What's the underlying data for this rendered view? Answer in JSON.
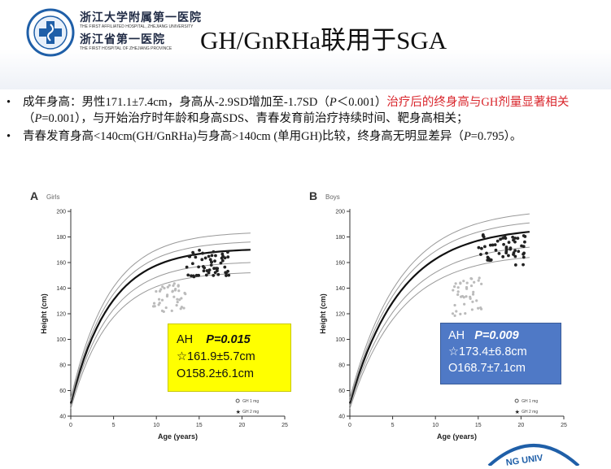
{
  "header": {
    "school_cn_1": "浙江大学附属第一医院",
    "school_en_1": "THE FIRST AFFILIATED HOSPITAL, ZHEJIANG UNIVERSITY",
    "school_cn_2": "浙江省第一医院",
    "school_en_2": "THE FIRST HOSPITAL OF ZHEJIANG PROVINCE",
    "title": "GH/GnRHa联用于SGA"
  },
  "bullets": [
    {
      "part1": "成年身高：男性171.1±7.4cm，身高从-2.9SD增加至-1.7SD（",
      "p_italic": "P",
      "part2": "＜0.001）",
      "red_text": "治疗后的终身高与GH剂量显著相关",
      "part3": "（",
      "p_italic2": "P",
      "part4": "=0.001），与开始治疗时年龄和身高SDS、青春发育前治疗持续时间、靶身高相关；"
    },
    {
      "part1": "青春发育身高<140cm(GH/GnRHa)与身高>140cm (单用GH)比较，终身高无明显差异（",
      "p_italic": "P",
      "part2": "=0.795）。"
    }
  ],
  "bullet_symbol": "•",
  "chart_data": [
    {
      "type": "scatter",
      "panel": "A",
      "title": "Girls",
      "xlabel": "Age (years)",
      "ylabel": "Height (cm)",
      "xlim": [
        0,
        25
      ],
      "ylim": [
        40,
        200
      ],
      "x_ticks": [
        "0",
        "5",
        "10",
        "15",
        "20",
        "25"
      ],
      "y_ticks": [
        "40",
        "60",
        "80",
        "100",
        "120",
        "140",
        "160",
        "180",
        "200"
      ],
      "legend": [
        "GH 1 mg",
        "GH 2 mg"
      ],
      "annotation": {
        "label": "AH",
        "p": "P=0.015",
        "line1": "☆161.9±5.7cm",
        "line2": "O158.2±6.1cm"
      }
    },
    {
      "type": "scatter",
      "panel": "B",
      "title": "Boys",
      "xlabel": "Age (years)",
      "ylabel": "Height (cm)",
      "xlim": [
        0,
        25
      ],
      "ylim": [
        40,
        200
      ],
      "x_ticks": [
        "0",
        "5",
        "10",
        "15",
        "20",
        "25"
      ],
      "y_ticks": [
        "40",
        "60",
        "80",
        "100",
        "120",
        "140",
        "160",
        "180",
        "200"
      ],
      "legend": [
        "GH 1 mg",
        "GH 2 mg"
      ],
      "annotation": {
        "label": "AH",
        "p": "P=0.009",
        "line1": "☆173.4±6.8cm",
        "line2": "O168.7±7.1cm"
      }
    }
  ],
  "colors": {
    "highlight_red": "#d9262c",
    "box_yellow": "#ffff00",
    "box_blue": "#4f79c6"
  }
}
